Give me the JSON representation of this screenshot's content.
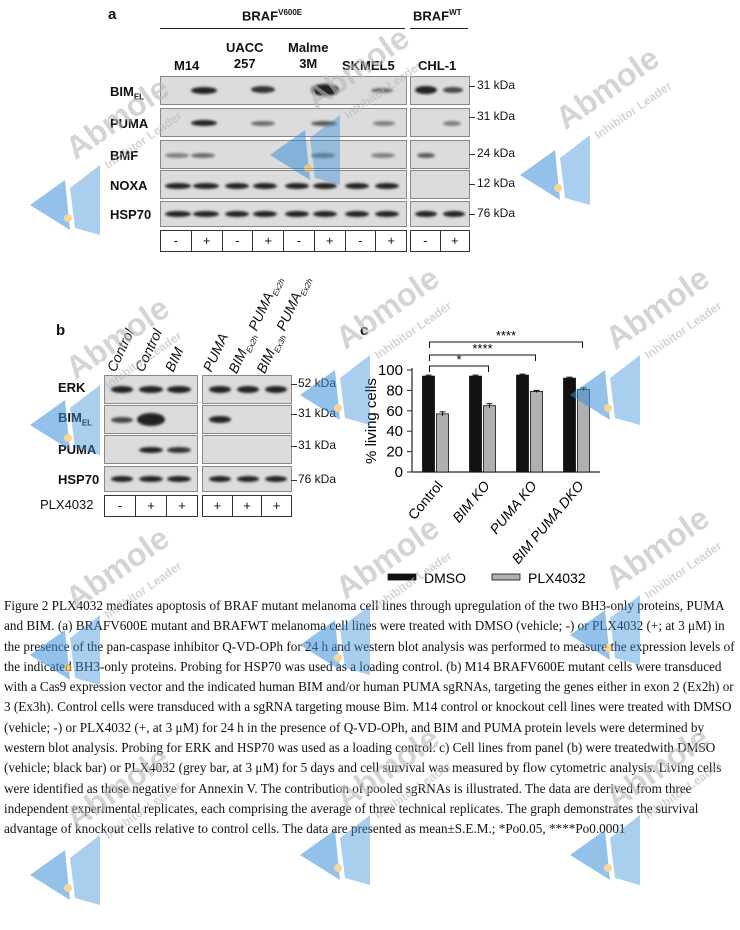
{
  "panel_a": {
    "letter": "a",
    "group_mut": "BRAF",
    "group_mut_sup": "V600E",
    "group_wt": "BRAF",
    "group_wt_sup": "WT",
    "cell_lines": [
      "M14",
      "UACC\n257",
      "Malme\n3M",
      "SKMEL5",
      "CHL-1"
    ],
    "rows": [
      {
        "name": "BIM",
        "sub": "EL",
        "kda": "31 kDa"
      },
      {
        "name": "PUMA",
        "sub": "",
        "kda": "31 kDa"
      },
      {
        "name": "BMF",
        "sub": "",
        "kda": "24 kDa"
      },
      {
        "name": "NOXA",
        "sub": "",
        "kda": "12 kDa"
      },
      {
        "name": "HSP70",
        "sub": "",
        "kda": "76 kDa"
      }
    ],
    "treatment": [
      "-",
      "+",
      "-",
      "+",
      "-",
      "+",
      "-",
      "+",
      "-",
      "+"
    ]
  },
  "panel_b": {
    "letter": "b",
    "column_labels": [
      "Control",
      "Control",
      "BIM",
      "PUMA",
      "BIM",
      "BIM"
    ],
    "column_subs": [
      "",
      "",
      "",
      "",
      "Ex2h",
      "Ex3h"
    ],
    "column_extra": [
      "",
      "",
      "",
      "",
      "PUMA",
      "PUMA"
    ],
    "column_extra_sub": [
      "",
      "",
      "",
      "",
      "Ex2h",
      "Ex2h"
    ],
    "rows": [
      {
        "name": "ERK",
        "sub": "",
        "kda": "52 kDa"
      },
      {
        "name": "BIM",
        "sub": "EL",
        "kda": "31 kDa"
      },
      {
        "name": "PUMA",
        "sub": "",
        "kda": "31 kDa"
      },
      {
        "name": "HSP70",
        "sub": "",
        "kda": "76 kDa"
      }
    ],
    "treatment_label": "PLX4032",
    "treatment": [
      "-",
      "+",
      "+",
      "+",
      "+",
      "+"
    ]
  },
  "panel_c": {
    "letter": "c",
    "chart_data": {
      "type": "bar",
      "categories": [
        "Control",
        "BIM KO",
        "PUMA KO",
        "BIM PUMA DKO"
      ],
      "series": [
        {
          "name": "DMSO",
          "values": [
            94,
            94,
            95,
            92
          ],
          "errors": [
            1,
            1,
            1,
            1
          ],
          "color": "#111111"
        },
        {
          "name": "PLX4032",
          "values": [
            57,
            65,
            79,
            81
          ],
          "errors": [
            2,
            2,
            1,
            1.5
          ],
          "color": "#b0b0b0"
        }
      ],
      "ylabel": "% living cells",
      "yticks": [
        0,
        20,
        40,
        60,
        80,
        100
      ],
      "ylim": [
        0,
        100
      ],
      "legend_position": "bottom",
      "significance": [
        {
          "from": 0,
          "to": 1,
          "label": "*"
        },
        {
          "from": 0,
          "to": 2,
          "label": "****"
        },
        {
          "from": 0,
          "to": 3,
          "label": "****"
        }
      ]
    }
  },
  "caption": "Figure 2 PLX4032 mediates apoptosis of BRAF mutant melanoma cell lines through upregulation of the two BH3-only proteins, PUMA and BIM. (a) BRAFV600E mutant and BRAFWT melanoma cell lines were treated with DMSO (vehicle; -) or PLX4032 (+; at 3 μM) in the presence of the pan-caspase inhibitor Q-VD-OPh for 24 h and western blot analysis was performed to measure the expression levels of the indicated BH3-only proteins. Probing for HSP70 was used as a loading control. (b) M14 BRAFV600E mutant cells were transduced with a Cas9 expression vector and the indicated human BIM and/or human PUMA sgRNAs, targeting the genes either in exon 2 (Ex2h) or 3 (Ex3h). Control cells were transduced with a sgRNA targeting mouse Bim. M14 control or knockout cell lines were treated with DMSO (vehicle; -) or PLX4032 (+, at 3 μM) for 24 h in the presence of Q-VD-OPh, and BIM and PUMA protein levels were determined by western blot analysis. Probing for ERK and HSP70 was used as a loading control. c) Cell lines from panel (b) were treatedwith DMSO (vehicle; black bar) or PLX4032 (grey bar, at 3 μM) for 5 days and cell survival was measured by flow cytometric analysis. Living cells were identified as those negative for Annexin V. The contribution of pooled sgRNAs is illustrated. The data are derived from three independent experimental replicates, each comprising the average of three technical replicates. The graph demonstrates the survival advantage of knockout cells relative to control cells. The data are presented as mean±S.E.M.; *Po0.05, ****Po0.0001",
  "watermark": {
    "brand": "Abmole",
    "tagline": "Inhibitor Leader",
    "brand_color": "#b9b9b9",
    "logo_color": "#3d8fd8"
  }
}
